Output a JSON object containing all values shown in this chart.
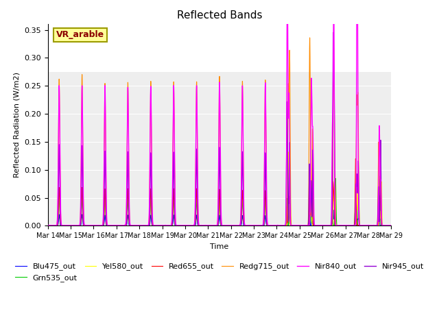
{
  "title": "Reflected Bands",
  "xlabel": "Time",
  "ylabel": "Reflected Radiation (W/m2)",
  "ylim": [
    0,
    0.36
  ],
  "yticks": [
    0.0,
    0.05,
    0.1,
    0.15,
    0.2,
    0.25,
    0.3,
    0.35
  ],
  "xtick_labels": [
    "Mar 14",
    "Mar 15",
    "Mar 16",
    "Mar 17",
    "Mar 18",
    "Mar 19",
    "Mar 20",
    "Mar 21",
    "Mar 22",
    "Mar 23",
    "Mar 24",
    "Mar 25",
    "Mar 26",
    "Mar 27",
    "Mar 28",
    "Mar 29"
  ],
  "annotation_text": "VR_arable",
  "annotation_color": "#8B0000",
  "annotation_bg": "#FFFF99",
  "annotation_border": "#9B9B00",
  "bg_region_color": "#E8E8E8",
  "bands": {
    "Blu475_out": {
      "color": "#0000FF",
      "lw": 0.8
    },
    "Grn535_out": {
      "color": "#00CC00",
      "lw": 0.8
    },
    "Yel580_out": {
      "color": "#FFFF00",
      "lw": 0.8
    },
    "Red655_out": {
      "color": "#FF0000",
      "lw": 0.8
    },
    "Redg715_out": {
      "color": "#FF8C00",
      "lw": 0.8
    },
    "Nir840_out": {
      "color": "#FF00FF",
      "lw": 1.0
    },
    "Nir945_out": {
      "color": "#9400D3",
      "lw": 1.0
    }
  },
  "legend_ncol": 6,
  "legend_fontsize": 8,
  "title_fontsize": 11
}
